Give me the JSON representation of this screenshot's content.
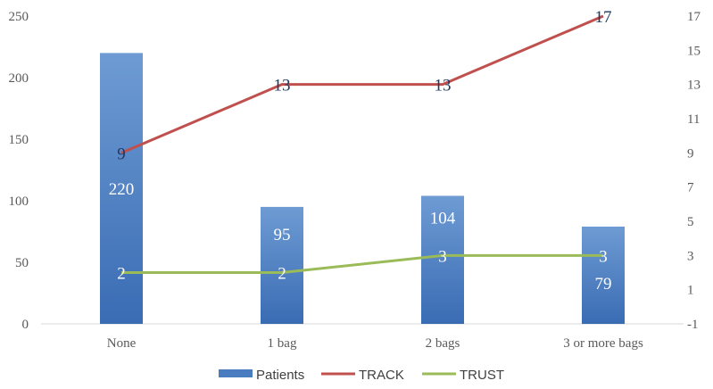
{
  "chart_data": {
    "type": "bar",
    "title": "",
    "categories": [
      "None",
      "1 bag",
      "2 bags",
      "3 or more bags"
    ],
    "series": [
      {
        "name": "Patients",
        "type": "bar",
        "axis": "left",
        "values": [
          220,
          95,
          104,
          79
        ],
        "color": "#4a7cc0"
      },
      {
        "name": "TRACK",
        "type": "line",
        "axis": "right",
        "values": [
          9,
          13,
          13,
          17
        ],
        "color": "#c0504d"
      },
      {
        "name": "TRUST",
        "type": "line",
        "axis": "right",
        "values": [
          2,
          2,
          3,
          3
        ],
        "color": "#9bbb59"
      }
    ],
    "y_left": {
      "range": [
        0,
        250
      ],
      "ticks": [
        "0",
        "50",
        "100",
        "150",
        "200",
        "250"
      ]
    },
    "y_right": {
      "range": [
        -1,
        17
      ],
      "ticks": [
        "-1",
        "1",
        "3",
        "5",
        "7",
        "9",
        "11",
        "13",
        "15",
        "17"
      ]
    },
    "xlabel": "",
    "ylabel": "",
    "grid": false,
    "legend": "bottom-center"
  }
}
